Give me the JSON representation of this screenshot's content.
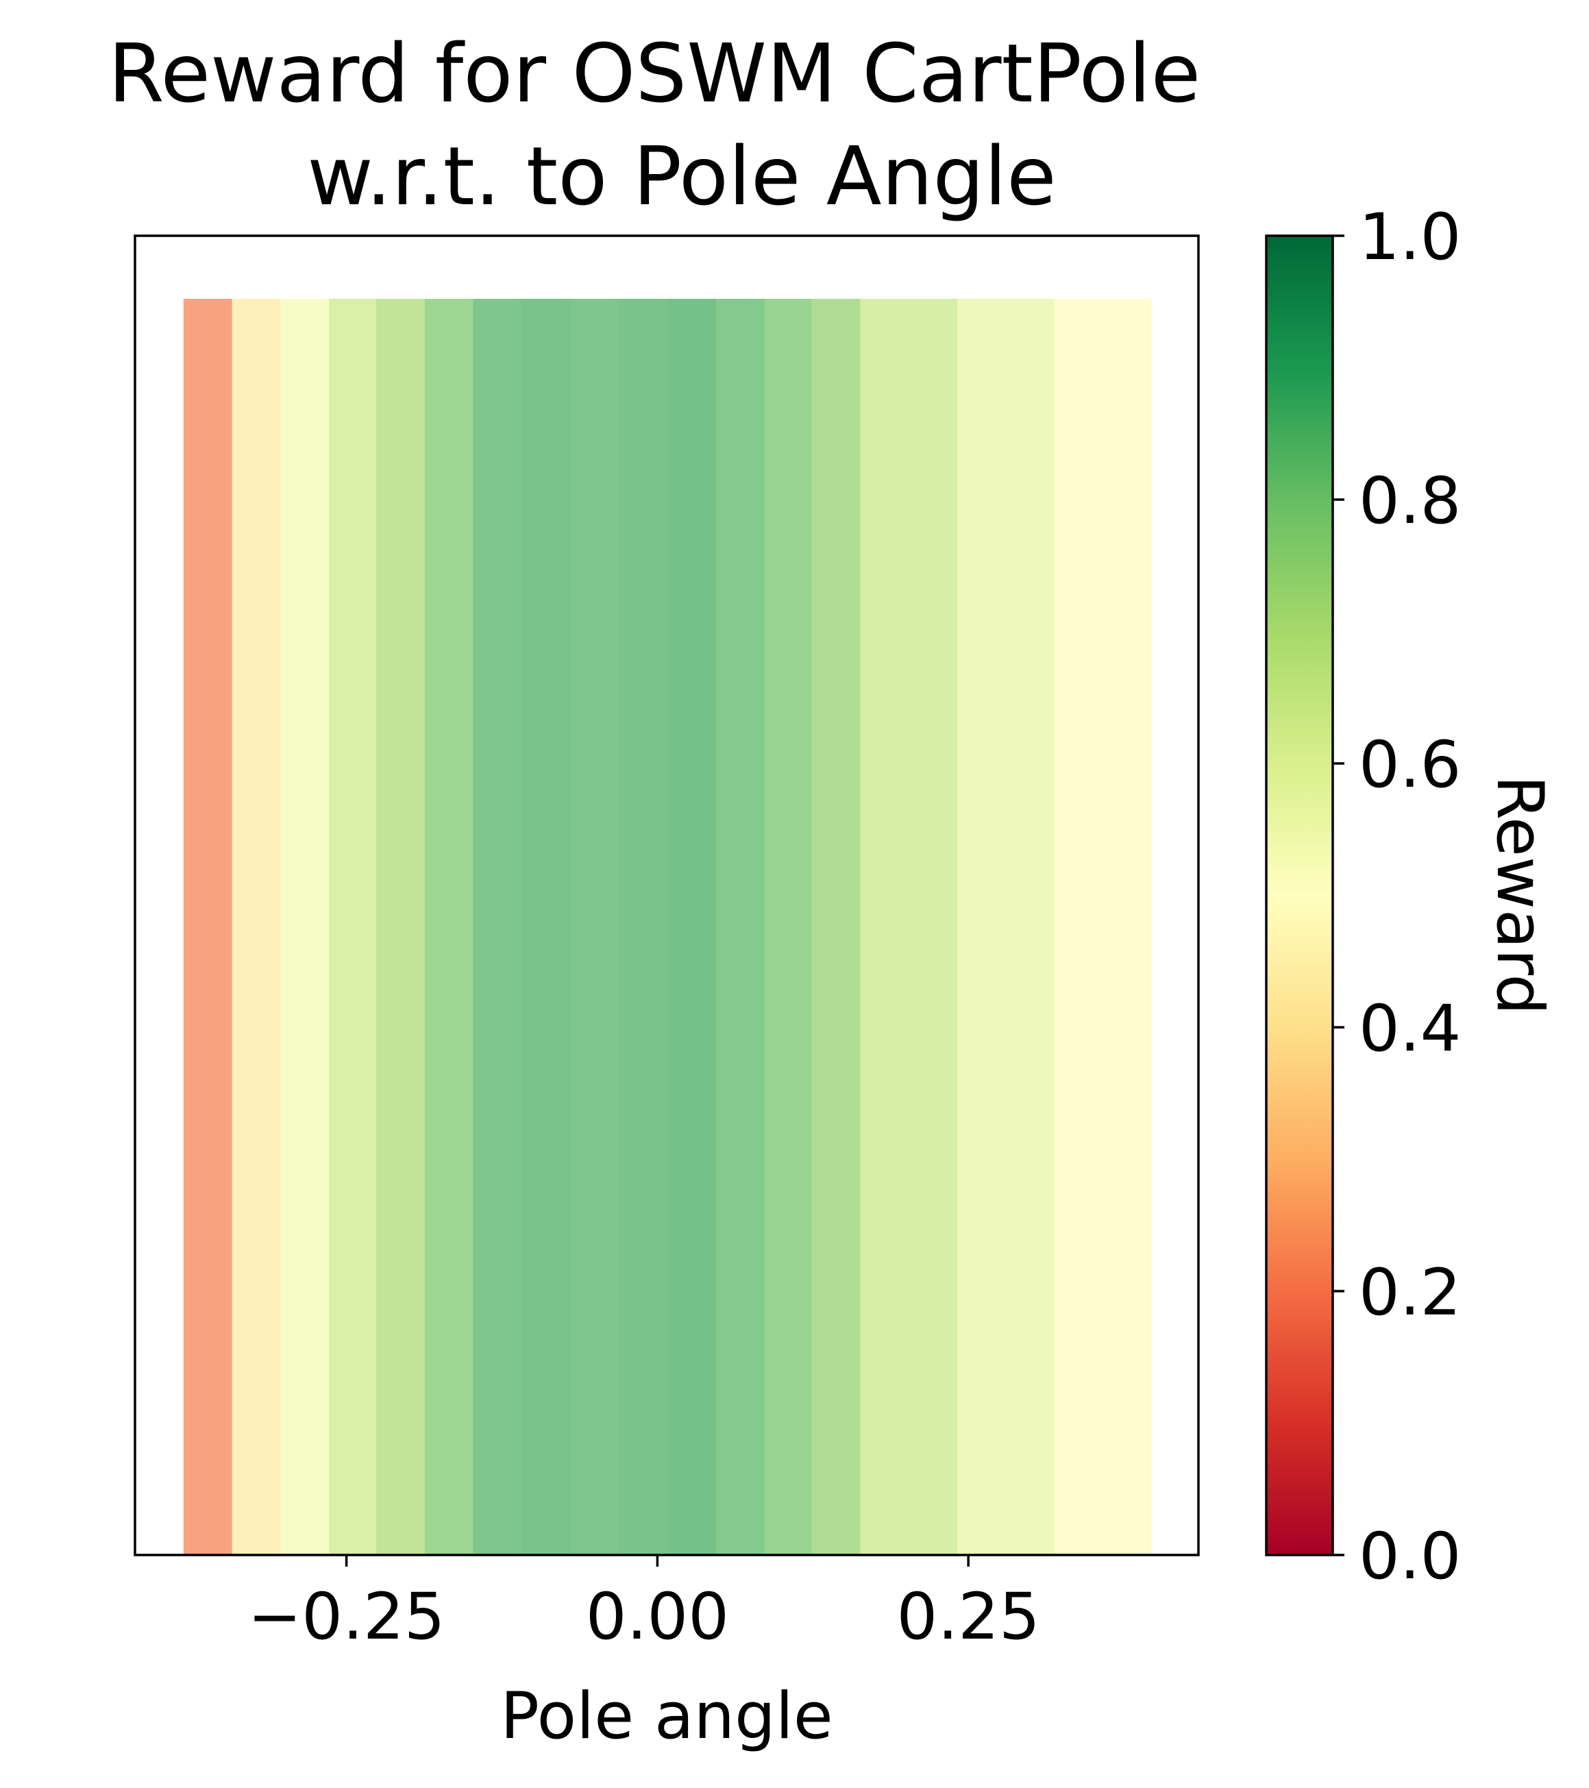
{
  "chart_data": {
    "type": "heatmap",
    "title_lines": [
      "Reward for OSWM CartPole",
      "w.r.t. to Pole Angle"
    ],
    "xlabel": "Pole angle",
    "xlim": [
      -0.42,
      0.435
    ],
    "x_ticks": [
      {
        "value": -0.25,
        "label": "−0.25"
      },
      {
        "value": 0.0,
        "label": "0.00"
      },
      {
        "value": 0.25,
        "label": "0.25"
      }
    ],
    "bins": [
      {
        "x0": -0.381,
        "x1": -0.342,
        "reward": 0.22
      },
      {
        "x0": -0.342,
        "x1": -0.303,
        "reward": 0.43
      },
      {
        "x0": -0.303,
        "x1": -0.264,
        "reward": 0.53
      },
      {
        "x0": -0.264,
        "x1": -0.226,
        "reward": 0.63
      },
      {
        "x0": -0.226,
        "x1": -0.187,
        "reward": 0.7
      },
      {
        "x0": -0.187,
        "x1": -0.148,
        "reward": 0.78
      },
      {
        "x0": -0.148,
        "x1": -0.109,
        "reward": 0.84
      },
      {
        "x0": -0.109,
        "x1": -0.07,
        "reward": 0.85
      },
      {
        "x0": -0.07,
        "x1": -0.031,
        "reward": 0.84
      },
      {
        "x0": -0.031,
        "x1": 0.008,
        "reward": 0.85
      },
      {
        "x0": 0.008,
        "x1": 0.047,
        "reward": 0.86
      },
      {
        "x0": 0.047,
        "x1": 0.086,
        "reward": 0.83
      },
      {
        "x0": 0.086,
        "x1": 0.124,
        "reward": 0.79
      },
      {
        "x0": 0.124,
        "x1": 0.163,
        "reward": 0.74
      },
      {
        "x0": 0.163,
        "x1": 0.202,
        "reward": 0.64
      },
      {
        "x0": 0.202,
        "x1": 0.241,
        "reward": 0.64
      },
      {
        "x0": 0.241,
        "x1": 0.28,
        "reward": 0.56
      },
      {
        "x0": 0.28,
        "x1": 0.319,
        "reward": 0.56
      },
      {
        "x0": 0.319,
        "x1": 0.358,
        "reward": 0.49
      },
      {
        "x0": 0.358,
        "x1": 0.397,
        "reward": 0.49
      }
    ],
    "colorbar": {
      "label": "Reward",
      "colormap": "RdYlGn",
      "range": [
        0.0,
        1.0
      ],
      "ticks": [
        {
          "value": 0.0,
          "label": "0.0"
        },
        {
          "value": 0.2,
          "label": "0.2"
        },
        {
          "value": 0.4,
          "label": "0.4"
        },
        {
          "value": 0.6,
          "label": "0.6"
        },
        {
          "value": 0.8,
          "label": "0.8"
        },
        {
          "value": 1.0,
          "label": "1.0"
        }
      ],
      "stops": [
        "#a50026",
        "#d73027",
        "#f46d43",
        "#fdae61",
        "#fee08b",
        "#ffffbf",
        "#d9ef8b",
        "#a6d96a",
        "#66bd63",
        "#1a9850",
        "#006837"
      ]
    },
    "bar_alpha": 0.7,
    "grid": false
  }
}
